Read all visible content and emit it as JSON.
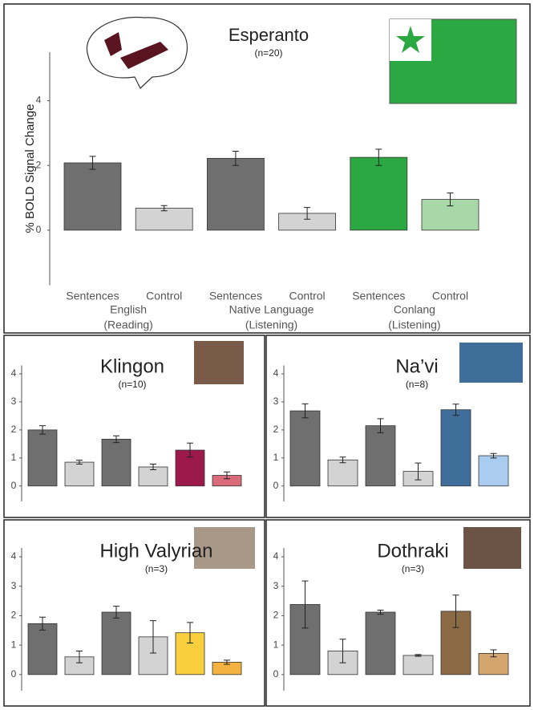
{
  "chart_data": [
    {
      "type": "bar",
      "title": "Esperanto",
      "subtitle": "(n=20)",
      "ylabel": "% BOLD Signal Change",
      "categories": [
        "Sentences",
        "Control",
        "Sentences",
        "Control",
        "Sentences",
        "Control"
      ],
      "groups": [
        [
          "English",
          "(Reading)"
        ],
        [
          "Native Language",
          "(Listening)"
        ],
        [
          "Conlang",
          "(Listening)"
        ]
      ],
      "values": [
        2.08,
        0.68,
        2.22,
        0.52,
        2.25,
        0.95
      ],
      "errors": [
        0.2,
        0.08,
        0.22,
        0.18,
        0.25,
        0.2
      ],
      "colors": [
        "#6f6f6f",
        "#d3d3d3",
        "#6f6f6f",
        "#d3d3d3",
        "#2ca843",
        "#a8d8a8"
      ],
      "ylim": [
        -1.7,
        5.5
      ],
      "yticks": [
        0,
        2,
        4
      ]
    },
    {
      "type": "bar",
      "title": "Klingon",
      "subtitle": "(n=10)",
      "values": [
        2.0,
        0.85,
        1.67,
        0.68,
        1.28,
        0.38
      ],
      "errors": [
        0.15,
        0.07,
        0.12,
        0.1,
        0.25,
        0.12
      ],
      "colors": [
        "#6f6f6f",
        "#d3d3d3",
        "#6f6f6f",
        "#d3d3d3",
        "#9b1a4b",
        "#d96b7a"
      ],
      "ylim": [
        -0.55,
        4.3
      ],
      "yticks": [
        0,
        1,
        2,
        3,
        4
      ]
    },
    {
      "type": "bar",
      "title": "Na’vi",
      "subtitle": "(n=8)",
      "values": [
        2.68,
        0.93,
        2.15,
        0.52,
        2.72,
        1.08
      ],
      "errors": [
        0.25,
        0.1,
        0.25,
        0.3,
        0.2,
        0.08
      ],
      "colors": [
        "#6f6f6f",
        "#d3d3d3",
        "#6f6f6f",
        "#d3d3d3",
        "#3f6e9b",
        "#a9ccef"
      ],
      "ylim": [
        -0.55,
        4.3
      ],
      "yticks": [
        0,
        1,
        2,
        3,
        4
      ]
    },
    {
      "type": "bar",
      "title": "High Valyrian",
      "subtitle": "(n=3)",
      "values": [
        1.73,
        0.6,
        2.12,
        1.28,
        1.42,
        0.42
      ],
      "errors": [
        0.22,
        0.2,
        0.2,
        0.55,
        0.35,
        0.07
      ],
      "colors": [
        "#6f6f6f",
        "#d3d3d3",
        "#6f6f6f",
        "#d3d3d3",
        "#f9cf3e",
        "#f4b340"
      ],
      "ylim": [
        -0.55,
        4.3
      ],
      "yticks": [
        0,
        1,
        2,
        3,
        4
      ]
    },
    {
      "type": "bar",
      "title": "Dothraki",
      "subtitle": "(n=3)",
      "values": [
        2.38,
        0.8,
        2.12,
        0.65,
        2.15,
        0.72
      ],
      "errors": [
        0.8,
        0.4,
        0.07,
        0.03,
        0.55,
        0.12
      ],
      "colors": [
        "#6f6f6f",
        "#d3d3d3",
        "#6f6f6f",
        "#d3d3d3",
        "#8b6a46",
        "#d3a56f"
      ],
      "ylim": [
        -0.55,
        4.3
      ],
      "yticks": [
        0,
        1,
        2,
        3,
        4
      ]
    }
  ]
}
